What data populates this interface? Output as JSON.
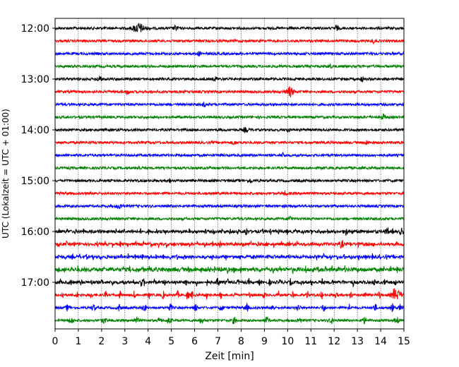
{
  "chart_data": {
    "type": "line",
    "subtype": "helicorder-seismogram",
    "xlabel": "Zeit  [min]",
    "ylabel": "UTC (Lokalzeit = UTC + 01:00)",
    "xlim": [
      0,
      15
    ],
    "x_ticks": [
      "0",
      "1",
      "2",
      "3",
      "4",
      "5",
      "6",
      "7",
      "8",
      "9",
      "10",
      "11",
      "12",
      "13",
      "14",
      "15"
    ],
    "y_ticks": [
      "12:00",
      "13:00",
      "14:00",
      "15:00",
      "16:00",
      "17:00"
    ],
    "grid": "vertical-dotted",
    "trace_interval_minutes": 15,
    "trace_colors": [
      "#000000",
      "#ff0000",
      "#0000ff",
      "#008000"
    ],
    "traces": [
      {
        "start": "12:00",
        "color": "#000000",
        "noise": 0.3,
        "events": [
          {
            "t": 3.6,
            "a": 1.0,
            "w": 0.25
          },
          {
            "t": 5.2,
            "a": 0.5,
            "w": 0.1
          },
          {
            "t": 12.1,
            "a": 0.55,
            "w": 0.08
          }
        ]
      },
      {
        "start": "12:15",
        "color": "#ff0000",
        "noise": 0.3,
        "events": [
          {
            "t": 13.7,
            "a": 0.45,
            "w": 0.08
          }
        ]
      },
      {
        "start": "12:30",
        "color": "#0000ff",
        "noise": 0.3,
        "events": [
          {
            "t": 6.2,
            "a": 0.4,
            "w": 0.08
          }
        ]
      },
      {
        "start": "12:45",
        "color": "#008000",
        "noise": 0.3,
        "events": [
          {
            "t": 11.8,
            "a": 0.5,
            "w": 0.08
          }
        ]
      },
      {
        "start": "13:00",
        "color": "#000000",
        "noise": 0.3,
        "events": [
          {
            "t": 1.9,
            "a": 0.5,
            "w": 0.1
          },
          {
            "t": 6.9,
            "a": 0.4,
            "w": 0.08
          },
          {
            "t": 13.2,
            "a": 0.5,
            "w": 0.08
          }
        ]
      },
      {
        "start": "13:15",
        "color": "#ff0000",
        "noise": 0.3,
        "events": [
          {
            "t": 3.1,
            "a": 0.5,
            "w": 0.08
          },
          {
            "t": 10.1,
            "a": 1.0,
            "w": 0.15
          }
        ]
      },
      {
        "start": "13:30",
        "color": "#0000ff",
        "noise": 0.3,
        "events": [
          {
            "t": 6.4,
            "a": 0.4,
            "w": 0.08
          }
        ]
      },
      {
        "start": "13:45",
        "color": "#008000",
        "noise": 0.3,
        "events": [
          {
            "t": 14.1,
            "a": 0.6,
            "w": 0.08
          }
        ]
      },
      {
        "start": "14:00",
        "color": "#000000",
        "noise": 0.3,
        "events": [
          {
            "t": 8.2,
            "a": 0.4,
            "w": 0.1
          },
          {
            "t": 10.0,
            "a": 0.4,
            "w": 0.08
          }
        ]
      },
      {
        "start": "14:15",
        "color": "#ff0000",
        "noise": 0.3,
        "events": [
          {
            "t": 7.7,
            "a": 0.4,
            "w": 0.08
          },
          {
            "t": 13.4,
            "a": 0.45,
            "w": 0.08
          }
        ]
      },
      {
        "start": "14:30",
        "color": "#0000ff",
        "noise": 0.3,
        "events": [
          {
            "t": 9.8,
            "a": 0.4,
            "w": 0.08
          }
        ]
      },
      {
        "start": "14:45",
        "color": "#008000",
        "noise": 0.3,
        "events": [
          {
            "t": 3.6,
            "a": 0.4,
            "w": 0.08
          }
        ]
      },
      {
        "start": "15:00",
        "color": "#000000",
        "noise": 0.3,
        "events": [
          {
            "t": 4.9,
            "a": 0.45,
            "w": 0.08
          },
          {
            "t": 8.4,
            "a": 0.4,
            "w": 0.08
          }
        ]
      },
      {
        "start": "15:15",
        "color": "#ff0000",
        "noise": 0.3,
        "events": [
          {
            "t": 9.9,
            "a": 0.45,
            "w": 0.08
          }
        ]
      },
      {
        "start": "15:30",
        "color": "#0000ff",
        "noise": 0.3,
        "events": [
          {
            "t": 2.8,
            "a": 0.45,
            "w": 0.15
          }
        ]
      },
      {
        "start": "15:45",
        "color": "#008000",
        "noise": 0.3,
        "events": [
          {
            "t": 10.1,
            "a": 0.5,
            "w": 0.08
          }
        ]
      },
      {
        "start": "16:00",
        "color": "#000000",
        "noise": 0.35,
        "burst_period": 0.35,
        "burst_amp": 0.45,
        "events": [
          {
            "t": 8.2,
            "a": 0.8,
            "w": 0.06
          },
          {
            "t": 12.5,
            "a": 0.8,
            "w": 0.06
          },
          {
            "t": 14.3,
            "a": 0.7,
            "w": 0.06
          },
          {
            "t": 14.9,
            "a": 0.7,
            "w": 0.06
          }
        ]
      },
      {
        "start": "16:15",
        "color": "#ff0000",
        "noise": 0.35,
        "burst_period": 0.33,
        "burst_amp": 0.55,
        "events": [
          {
            "t": 12.3,
            "a": 0.7,
            "w": 0.06
          }
        ]
      },
      {
        "start": "16:30",
        "color": "#0000ff",
        "noise": 0.35,
        "burst_period": 0.3,
        "burst_amp": 0.5,
        "events": []
      },
      {
        "start": "16:45",
        "color": "#008000",
        "noise": 0.45,
        "burst_period": 0.28,
        "burst_amp": 0.6,
        "events": []
      },
      {
        "start": "17:00",
        "color": "#000000",
        "noise": 0.35,
        "burst_period": 0.45,
        "burst_amp": 0.7,
        "events": [
          {
            "t": 3.7,
            "a": 0.8,
            "w": 0.06
          },
          {
            "t": 7.0,
            "a": 0.8,
            "w": 0.06
          }
        ]
      },
      {
        "start": "17:15",
        "color": "#ff0000",
        "noise": 0.3,
        "burst_period": 0.62,
        "burst_amp": 0.8,
        "events": [
          {
            "t": 5.7,
            "a": 0.9,
            "w": 0.06
          },
          {
            "t": 14.7,
            "a": 1.0,
            "w": 0.2
          }
        ]
      },
      {
        "start": "17:30",
        "color": "#0000ff",
        "noise": 0.28,
        "burst_period": 1.1,
        "burst_amp": 0.7,
        "events": [
          {
            "t": 14.5,
            "a": 0.8,
            "w": 0.06
          }
        ]
      },
      {
        "start": "17:45",
        "color": "#008000",
        "noise": 0.28,
        "burst_period": 1.4,
        "burst_amp": 0.6,
        "events": [
          {
            "t": 4.5,
            "a": 0.8,
            "w": 0.06
          }
        ]
      }
    ]
  }
}
